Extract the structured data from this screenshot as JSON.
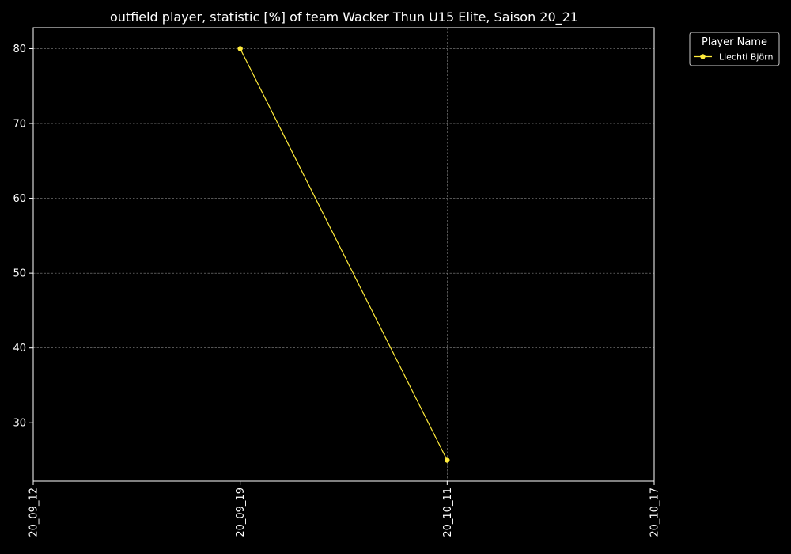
{
  "chart_data": {
    "type": "line",
    "title": "outfield player, statistic [%] of team Wacker Thun U15 Elite, Saison 20_21",
    "xlabel": "",
    "ylabel": "",
    "x_categories": [
      "20_09_12",
      "20_09_19",
      "20_10_11",
      "20_10_17"
    ],
    "ylim": [
      22.2,
      82.8
    ],
    "yticks": [
      30,
      40,
      50,
      60,
      70,
      80
    ],
    "grid": true,
    "legend": {
      "title": "Player Name",
      "placement": "outside-top-right"
    },
    "series": [
      {
        "name": "Liechti Björn",
        "color": "#ffeb3b",
        "points": [
          {
            "x": "20_09_19",
            "y": 80
          },
          {
            "x": "20_10_11",
            "y": 25
          }
        ]
      }
    ]
  },
  "colors": {
    "background": "#000000",
    "foreground": "#ffffff",
    "grid": "#888888"
  }
}
